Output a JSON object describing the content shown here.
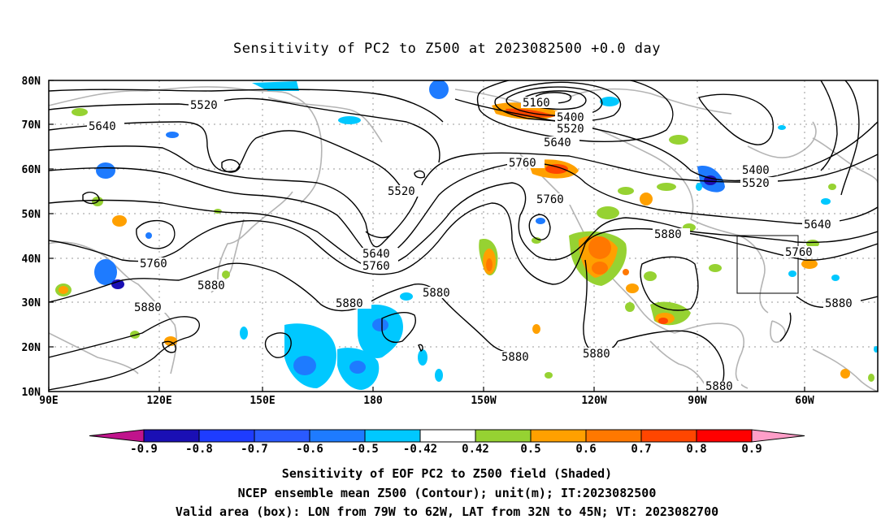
{
  "title": "Sensitivity of PC2 to Z500 at 2023082500 +0.0 day",
  "lon_labels": [
    "90E",
    "120E",
    "150E",
    "180",
    "150W",
    "120W",
    "90W",
    "60W"
  ],
  "lat_labels": [
    "80N",
    "70N",
    "60N",
    "50N",
    "40N",
    "30N",
    "20N",
    "10N"
  ],
  "contour_labels": [
    {
      "text": "5520",
      "name": "contour-label-5520-a"
    },
    {
      "text": "5640",
      "name": "contour-label-5640-a"
    },
    {
      "text": "5160",
      "name": "contour-label-5160"
    },
    {
      "text": "5400",
      "name": "contour-label-5400-a"
    },
    {
      "text": "5520",
      "name": "contour-label-5520-b"
    },
    {
      "text": "5640",
      "name": "contour-label-5640-b"
    },
    {
      "text": "5760",
      "name": "contour-label-5760-a"
    },
    {
      "text": "5520",
      "name": "contour-label-5520-c"
    },
    {
      "text": "5760",
      "name": "contour-label-5760-b"
    },
    {
      "text": "5400",
      "name": "contour-label-5400-b"
    },
    {
      "text": "5520",
      "name": "contour-label-5520-d"
    },
    {
      "text": "5640",
      "name": "contour-label-5640-c"
    },
    {
      "text": "5880",
      "name": "contour-label-5880-a"
    },
    {
      "text": "5760",
      "name": "contour-label-5760-c"
    },
    {
      "text": "5760",
      "name": "contour-label-5760-d"
    },
    {
      "text": "5640",
      "name": "contour-label-5640-d"
    },
    {
      "text": "5760",
      "name": "contour-label-5760-e"
    },
    {
      "text": "5880",
      "name": "contour-label-5880-b"
    },
    {
      "text": "5880",
      "name": "contour-label-5880-c"
    },
    {
      "text": "5880",
      "name": "contour-label-5880-d"
    },
    {
      "text": "5880",
      "name": "contour-label-5880-e"
    },
    {
      "text": "5880",
      "name": "contour-label-5880-f"
    },
    {
      "text": "5880",
      "name": "contour-label-5880-g"
    },
    {
      "text": "5880",
      "name": "contour-label-5880-h"
    },
    {
      "text": "5880",
      "name": "contour-label-5880-i"
    }
  ],
  "colorbar": {
    "labels": [
      "-0.9",
      "-0.8",
      "-0.7",
      "-0.6",
      "-0.5",
      "-0.42",
      "0.42",
      "0.5",
      "0.6",
      "0.7",
      "0.8",
      "0.9"
    ],
    "colors": {
      "below": "#c0148c",
      "bins": [
        "#1a0fb4",
        "#1e3cff",
        "#2a5aff",
        "#1e7bff",
        "#00c8ff",
        "#ffffff",
        "#96d232",
        "#ffa000",
        "#ff7800",
        "#ff4600",
        "#ff0000"
      ],
      "above": "#ff9ec8"
    }
  },
  "captions": {
    "line1": "Sensitivity of EOF PC2 to Z500 field (Shaded)",
    "line2": "NCEP ensemble mean Z500 (Contour); unit(m); IT:2023082500",
    "line3": "Valid area (box): LON from 79W to 62W, LAT from 32N to 45N; VT: 2023082700"
  },
  "valid_box": {
    "lon_min": -79,
    "lon_max": -62,
    "lat_min": 32,
    "lat_max": 45
  }
}
